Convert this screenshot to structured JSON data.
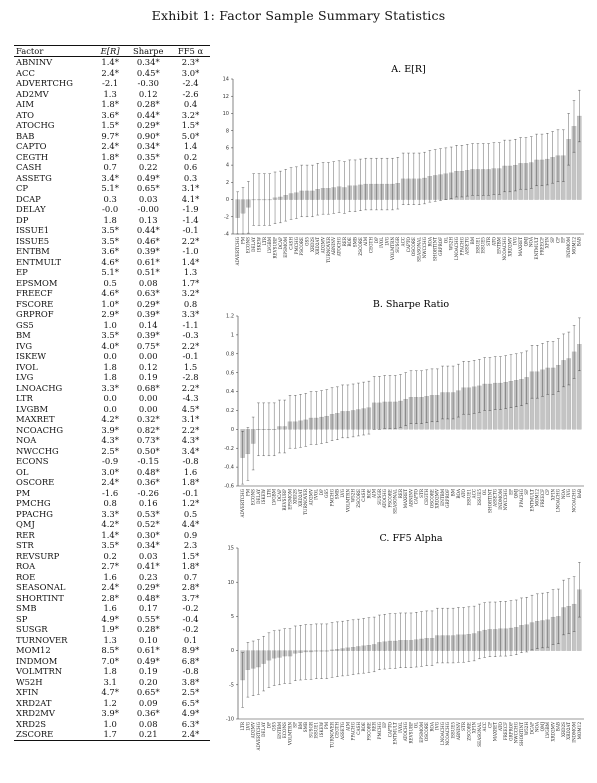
{
  "title": "Exhibit 1: Factor Sample Summary Statistics",
  "table": {
    "headers": [
      "Factor",
      "E[R]",
      "Sharpe",
      "FF5 α"
    ],
    "rows": [
      [
        "ABNINV",
        "1.4*",
        "0.34*",
        "2.3*"
      ],
      [
        "ACC",
        "2.4*",
        "0.45*",
        "3.0*"
      ],
      [
        "ADVERTCHG",
        "-2.1",
        "-0.30",
        "-2.4"
      ],
      [
        "AD2MV",
        "1.3",
        "0.12",
        "-2.6"
      ],
      [
        "AIM",
        "1.8*",
        "0.28*",
        "0.4"
      ],
      [
        "ATO",
        "3.6*",
        "0.44*",
        "3.2*"
      ],
      [
        "ATOCHG",
        "1.5*",
        "0.29*",
        "1.5*"
      ],
      [
        "BAB",
        "9.7*",
        "0.90*",
        "5.0*"
      ],
      [
        "CAPTO",
        "2.4*",
        "0.34*",
        "1.4"
      ],
      [
        "CEGTH",
        "1.8*",
        "0.35*",
        "0.2"
      ],
      [
        "CASH",
        "0.7",
        "0.22",
        "0.6"
      ],
      [
        "ASSETG",
        "3.4*",
        "0.49*",
        "0.3"
      ],
      [
        "CP",
        "5.1*",
        "0.65*",
        "3.1*"
      ],
      [
        "DCAP",
        "0.3",
        "0.03",
        "4.1*"
      ],
      [
        "DELAY",
        "-0.0",
        "-0.00",
        "-1.9"
      ],
      [
        "DP",
        "1.8",
        "0.13",
        "-1.4"
      ],
      [
        "ISSUE1",
        "3.5*",
        "0.44*",
        "-0.1"
      ],
      [
        "ISSUE5",
        "3.5*",
        "0.46*",
        "2.2*"
      ],
      [
        "ENTBM",
        "3.6*",
        "0.39*",
        "-1.0"
      ],
      [
        "ENTMULT",
        "4.6*",
        "0.61*",
        "1.4*"
      ],
      [
        "EP",
        "5.1*",
        "0.51*",
        "1.3"
      ],
      [
        "EPSMOM",
        "0.5",
        "0.08",
        "1.7*"
      ],
      [
        "FREECF",
        "4.6*",
        "0.63*",
        "3.2*"
      ],
      [
        "FSCORE",
        "1.0*",
        "0.29*",
        "0.8"
      ],
      [
        "GRPROF",
        "2.9*",
        "0.39*",
        "3.3*"
      ],
      [
        "GS5",
        "1.0",
        "0.14",
        "-1.1"
      ],
      [
        "BM",
        "3.5*",
        "0.39*",
        "-0.3"
      ],
      [
        "IVG",
        "4.0*",
        "0.75*",
        "2.2*"
      ],
      [
        "ISKEW",
        "0.0",
        "0.00",
        "-0.1"
      ],
      [
        "IVOL",
        "1.8",
        "0.12",
        "1.5"
      ],
      [
        "LVG",
        "1.8",
        "0.19",
        "-2.8"
      ],
      [
        "LNOACHG",
        "3.3*",
        "0.68*",
        "2.2*"
      ],
      [
        "LTR",
        "0.0",
        "0.00",
        "-4.3"
      ],
      [
        "LVGBM",
        "0.0",
        "0.00",
        "4.5*"
      ],
      [
        "MAXRET",
        "4.2*",
        "0.32*",
        "3.1*"
      ],
      [
        "NCOACHG",
        "3.9*",
        "0.82*",
        "2.2*"
      ],
      [
        "NOA",
        "4.3*",
        "0.73*",
        "4.3*"
      ],
      [
        "NWCCHG",
        "2.5*",
        "0.50*",
        "3.4*"
      ],
      [
        "ECONS",
        "-0.9",
        "-0.15",
        "-0.8"
      ],
      [
        "OL",
        "3.0*",
        "0.48*",
        "1.6"
      ],
      [
        "OSCORE",
        "2.4*",
        "0.36*",
        "1.8*"
      ],
      [
        "PM",
        "-1.6",
        "-0.26",
        "-0.1"
      ],
      [
        "PMCHG",
        "0.8",
        "0.16",
        "1.2*"
      ],
      [
        "PPACHG",
        "3.3*",
        "0.53*",
        "0.5"
      ],
      [
        "QMJ",
        "4.2*",
        "0.52*",
        "4.4*"
      ],
      [
        "RER",
        "1.4*",
        "0.30*",
        "0.9"
      ],
      [
        "STR",
        "3.5*",
        "0.34*",
        "2.3"
      ],
      [
        "REVSURP",
        "0.2",
        "0.03",
        "1.5*"
      ],
      [
        "ROA",
        "2.7*",
        "0.41*",
        "1.8*"
      ],
      [
        "ROE",
        "1.6",
        "0.23",
        "0.7"
      ],
      [
        "SEASONAL",
        "2.4*",
        "0.29*",
        "2.8*"
      ],
      [
        "SHORTINT",
        "2.8*",
        "0.48*",
        "3.7*"
      ],
      [
        "SMB",
        "1.6",
        "0.17",
        "-0.2"
      ],
      [
        "SP",
        "4.9*",
        "0.55*",
        "-0.4"
      ],
      [
        "SUSGR",
        "1.9*",
        "0.28*",
        "-0.2"
      ],
      [
        "TURNOVER",
        "1.3",
        "0.10",
        "0.1"
      ],
      [
        "MOM12",
        "8.5*",
        "0.61*",
        "8.9*"
      ],
      [
        "INDMOM",
        "7.0*",
        "0.49*",
        "6.8*"
      ],
      [
        "VOLMTRN",
        "1.8",
        "0.19",
        "-0.8"
      ],
      [
        "W52H",
        "3.1",
        "0.20",
        "3.8*"
      ],
      [
        "XFIN",
        "4.7*",
        "0.65*",
        "2.5*"
      ],
      [
        "XRD2AT",
        "1.2",
        "0.09",
        "6.5*"
      ],
      [
        "XRD2MV",
        "3.9*",
        "0.36*",
        "4.9*"
      ],
      [
        "XRD2S",
        "1.0",
        "0.08",
        "6.3*"
      ],
      [
        "ZSCORE",
        "1.7",
        "0.21",
        "2.4*"
      ]
    ]
  },
  "chart_data": [
    {
      "type": "bar",
      "title": "A. E[R]",
      "ylim": [
        -4,
        14
      ],
      "yticks": [
        -4,
        -2,
        0,
        2,
        4,
        6,
        8,
        10,
        12,
        14
      ],
      "error_bars": true,
      "categories": [
        "ADVERTCHG",
        "PM",
        "ECONS",
        "DELAY",
        "ISKEW",
        "LTR",
        "LVGBM",
        "REVSURP",
        "DCAP",
        "EPSMOM",
        "CASH",
        "PMCHG",
        "FSCORE",
        "GS5",
        "XRD2S",
        "XRD2AT",
        "AD2MV",
        "TURNOVER",
        "ABNINV",
        "ATOCHG",
        "RER",
        "ROE",
        "SMB",
        "ZSCORE",
        "AIM",
        "CEGTH",
        "DP",
        "IVOL",
        "LVG",
        "VOLMTRN",
        "SUSGR",
        "ACC",
        "CAPTO",
        "OSCORE",
        "SEASONAL",
        "NWCCHG",
        "ROA",
        "SHORTINT",
        "GRPROF",
        "OL",
        "W52H",
        "LNOACHG",
        "PPACHG",
        "ASSETG",
        "BM",
        "ISSUE1",
        "ISSUE5",
        "STR",
        "ATO",
        "ENTBM",
        "NCOACHG",
        "XRD2MV",
        "IVG",
        "MAXRET",
        "QMJ",
        "NOA",
        "ENTMULT",
        "FREECF",
        "XFIN",
        "SP",
        "CP",
        "EP",
        "INDMOM",
        "MOM12",
        "BAB"
      ],
      "values": [
        -2.1,
        -1.6,
        -0.9,
        -0.0,
        0.0,
        0.0,
        0.0,
        0.2,
        0.3,
        0.5,
        0.7,
        0.8,
        1.0,
        1.0,
        1.0,
        1.2,
        1.3,
        1.3,
        1.4,
        1.5,
        1.4,
        1.6,
        1.6,
        1.7,
        1.8,
        1.8,
        1.8,
        1.8,
        1.8,
        1.8,
        1.9,
        2.4,
        2.4,
        2.4,
        2.4,
        2.5,
        2.7,
        2.8,
        2.9,
        3.0,
        3.1,
        3.3,
        3.3,
        3.4,
        3.5,
        3.5,
        3.5,
        3.5,
        3.6,
        3.6,
        3.9,
        3.9,
        4.0,
        4.2,
        4.2,
        4.3,
        4.6,
        4.6,
        4.7,
        4.9,
        5.1,
        5.1,
        7.0,
        8.5,
        9.7
      ]
    },
    {
      "type": "bar",
      "title": "B. Sharpe Ratio",
      "ylim": [
        -0.6,
        1.2
      ],
      "yticks": [
        -0.6,
        -0.4,
        -0.2,
        0,
        0.2,
        0.4,
        0.6,
        0.8,
        1,
        1.2
      ],
      "error_bars": true,
      "categories": [
        "ADVERTCHG",
        "PM",
        "ECONS",
        "DELAY",
        "ISKEW",
        "LTR",
        "LVGBM",
        "DCAP",
        "REVSURP",
        "EPSMOM",
        "XRD2S",
        "XRD2AT",
        "TURNOVER",
        "AD2MV",
        "IVOL",
        "DP",
        "GS5",
        "PMCHG",
        "SMB",
        "LVG",
        "VOLMTRN",
        "W52H",
        "ZSCORE",
        "CASH",
        "ROE",
        "AIM",
        "SUSGR",
        "ATOCHG",
        "FSCORE",
        "SEASONAL",
        "RER",
        "MAXRET",
        "ABNINV",
        "CAPTO",
        "STR",
        "CEGTH",
        "OSCORE",
        "XRD2MV",
        "ENTBM",
        "GRPROF",
        "BM",
        "ROA",
        "ATO",
        "ISSUE1",
        "ACC",
        "ISSUE5",
        "OL",
        "SHORTINT",
        "ASSETG",
        "INDMOM",
        "NWCCHG",
        "EP",
        "QMJ",
        "PPACHG",
        "SP",
        "ENTMULT",
        "MOM12",
        "FREECF",
        "CP",
        "XFIN",
        "LNOACHG",
        "NOA",
        "IVG",
        "NCOACHG",
        "BAB"
      ],
      "values": [
        -0.3,
        -0.26,
        -0.15,
        -0.0,
        0.0,
        0.0,
        0.0,
        0.03,
        0.03,
        0.08,
        0.08,
        0.09,
        0.1,
        0.12,
        0.12,
        0.13,
        0.14,
        0.16,
        0.17,
        0.19,
        0.19,
        0.2,
        0.21,
        0.22,
        0.23,
        0.28,
        0.28,
        0.29,
        0.29,
        0.29,
        0.3,
        0.32,
        0.34,
        0.34,
        0.34,
        0.35,
        0.36,
        0.36,
        0.39,
        0.39,
        0.39,
        0.41,
        0.44,
        0.44,
        0.45,
        0.46,
        0.48,
        0.48,
        0.49,
        0.49,
        0.5,
        0.51,
        0.52,
        0.53,
        0.55,
        0.61,
        0.61,
        0.63,
        0.65,
        0.65,
        0.68,
        0.73,
        0.75,
        0.82,
        0.9
      ]
    },
    {
      "type": "bar",
      "title": "C. FF5 Alpha",
      "ylim": [
        -10,
        15
      ],
      "yticks": [
        -10,
        -5,
        0,
        5,
        10,
        15
      ],
      "error_bars": true,
      "categories": [
        "LTR",
        "LVG",
        "AD2MV",
        "ADVERTCHG",
        "DELAY",
        "DP",
        "GS5",
        "ENTBM",
        "ECONS",
        "VOLMTRN",
        "SP",
        "BM",
        "SMB",
        "SUSGR",
        "ISSUE1",
        "ISKEW",
        "PM",
        "TURNOVER",
        "CEGTH",
        "ASSETG",
        "AIM",
        "PPACHG",
        "CASH",
        "ROE",
        "FSCORE",
        "RER",
        "PMCHG",
        "EP",
        "CAPTO",
        "ENTMULT",
        "IVOL",
        "ATOCHG",
        "REVSURP",
        "OL",
        "EPSMOM",
        "OSCORE",
        "ROA",
        "IVG",
        "LNOACHG",
        "NCOACHG",
        "ISSUE5",
        "ABNINV",
        "STR",
        "ZSCORE",
        "XFIN",
        "SEASONAL",
        "ACC",
        "CP",
        "MAXRET",
        "ATO",
        "FREECF",
        "GRPROF",
        "NWCCHG",
        "SHORTINT",
        "W52H",
        "DCAP",
        "NOA",
        "QMJ",
        "LVGBM",
        "XRD2MV",
        "BAB",
        "XRD2S",
        "XRD2AT",
        "INDMOM",
        "MOM12"
      ],
      "values": [
        -4.3,
        -2.8,
        -2.6,
        -2.4,
        -1.9,
        -1.4,
        -1.1,
        -1.0,
        -0.8,
        -0.8,
        -0.4,
        -0.3,
        -0.2,
        -0.2,
        -0.1,
        -0.1,
        -0.1,
        0.1,
        0.2,
        0.3,
        0.4,
        0.5,
        0.6,
        0.7,
        0.8,
        0.9,
        1.2,
        1.3,
        1.4,
        1.4,
        1.5,
        1.5,
        1.5,
        1.6,
        1.7,
        1.8,
        1.8,
        2.2,
        2.2,
        2.2,
        2.2,
        2.3,
        2.3,
        2.4,
        2.5,
        2.8,
        3.0,
        3.1,
        3.1,
        3.2,
        3.2,
        3.3,
        3.4,
        3.7,
        3.8,
        4.1,
        4.3,
        4.4,
        4.5,
        4.9,
        5.0,
        6.3,
        6.5,
        6.8,
        8.9
      ]
    }
  ],
  "colors": {
    "bar": "#c4c4c4",
    "bar_edge": "#9a9a9a",
    "error_bar": "#222222"
  }
}
